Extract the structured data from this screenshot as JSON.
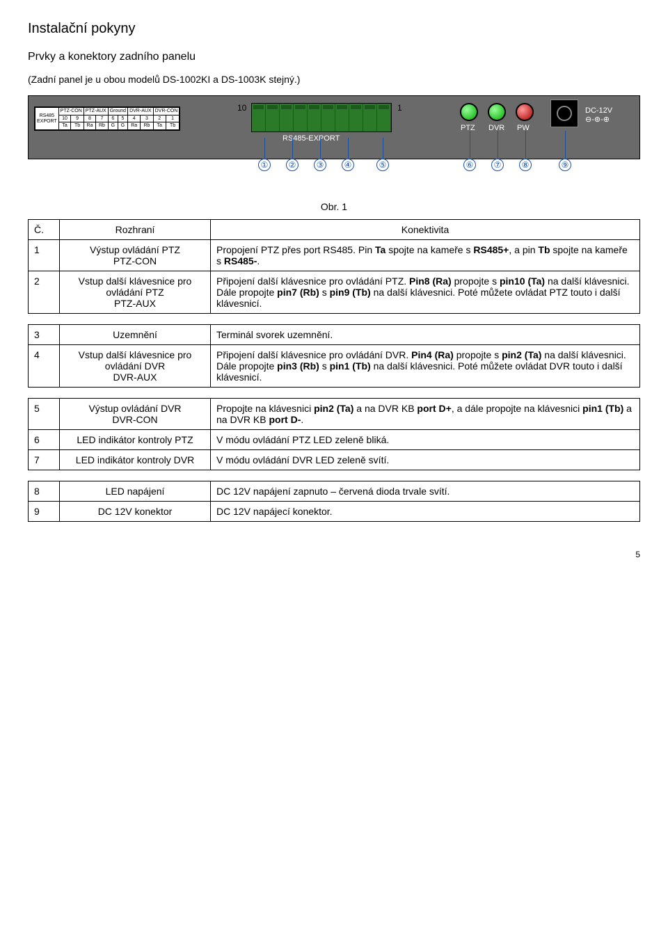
{
  "page": {
    "title": "Instalační pokyny",
    "section": "Prvky a konektory zadního panelu",
    "note": "(Zadní panel je u obou modelů DS-1002KI a DS-1003K stejný.)",
    "figure_caption": "Obr. 1",
    "page_number": "5"
  },
  "diagram": {
    "terminal_left": "10",
    "terminal_right": "1",
    "rs485_label": "RS485-EXPORT",
    "led_labels": [
      "PTZ",
      "DVR",
      "PW"
    ],
    "dc_label": "DC-12V",
    "dc_polarity": "⊖-⊛-⊕",
    "pin_grid_header": [
      "PTZ-CON",
      "PTZ-AUX",
      "Ground",
      "DVR-AUX",
      "DVR-CON"
    ],
    "pin_grid_nums": [
      "10",
      "9",
      "8",
      "7",
      "6",
      "5",
      "4",
      "3",
      "2",
      "1"
    ],
    "pin_grid_names": [
      "Ta",
      "Tb",
      "Ra",
      "Rb",
      "G",
      "G",
      "Ra",
      "Rb",
      "Ta",
      "Tb"
    ],
    "left_box_label1": "RS485",
    "left_box_label2": "EXPORT",
    "callouts": [
      "①",
      "②",
      "③",
      "④",
      "⑤",
      "⑥",
      "⑦",
      "⑧",
      "⑨"
    ]
  },
  "table_header": {
    "num": "Č.",
    "iface": "Rozhraní",
    "conn": "Konektivita"
  },
  "tables": [
    {
      "rows": [
        {
          "n": "1",
          "iface": "Výstup ovládání PTZ\nPTZ-CON",
          "conn": "Propojení PTZ přes port RS485. Pin Ta spojte na kameře s RS485+, a pin Tb spojte na kameře s RS485-."
        },
        {
          "n": "2",
          "iface": "Vstup další klávesnice pro ovládání PTZ\nPTZ-AUX",
          "conn": "Připojení další klávesnice pro ovládání PTZ. Pin8 (Ra) propojte s pin10 (Ta) na další klávesnici. Dále propojte pin7 (Rb) s pin9 (Tb) na další klávesnici. Poté můžete ovládat PTZ touto i další klávesnicí."
        }
      ]
    },
    {
      "rows": [
        {
          "n": "3",
          "iface": "Uzemnění",
          "conn": "Terminál svorek uzemnění."
        },
        {
          "n": "4",
          "iface": "Vstup další klávesnice pro ovládání DVR\nDVR-AUX",
          "conn": "Připojení další klávesnice pro ovládání DVR. Pin4 (Ra) propojte s pin2 (Ta) na další klávesnici. Dále propojte pin3 (Rb) s pin1 (Tb) na další klávesnici. Poté můžete ovládat DVR touto i další klávesnicí."
        }
      ]
    },
    {
      "rows": [
        {
          "n": "5",
          "iface": "Výstup ovládání DVR\nDVR-CON",
          "conn": "Propojte na klávesnici pin2 (Ta) a na DVR KB port D+, a dále propojte na klávesnici pin1 (Tb) a na DVR KB port D-."
        },
        {
          "n": "6",
          "iface": "LED indikátor kontroly PTZ",
          "conn": "V módu ovládání PTZ LED zeleně bliká."
        },
        {
          "n": "7",
          "iface": "LED indikátor kontroly DVR",
          "conn": "V módu ovládání DVR LED zeleně svítí."
        }
      ]
    },
    {
      "rows": [
        {
          "n": "8",
          "iface": "LED napájení",
          "conn": "DC 12V napájení zapnuto – červená dioda trvale svítí."
        },
        {
          "n": "9",
          "iface": "DC 12V konektor",
          "conn": "DC 12V napájecí konektor."
        }
      ]
    }
  ],
  "bold_spans": [
    "Ta",
    "RS485+",
    "Tb",
    "RS485-",
    "Pin8 (Ra)",
    "pin10 (Ta)",
    "pin7 (Rb)",
    "pin9 (Tb)",
    "Pin4 (Ra)",
    "pin2 (Ta)",
    "pin3 (Rb)",
    "pin1 (Tb)",
    "pin2 (Ta)",
    "port D+",
    "pin1 (Tb)",
    "port D-"
  ],
  "colors": {
    "panel_bg": "#6a6a6a",
    "terminal_green": "#2a7a2a",
    "led_green": "#0a0",
    "led_red": "#a00",
    "callout_blue": "#1a50a0"
  }
}
